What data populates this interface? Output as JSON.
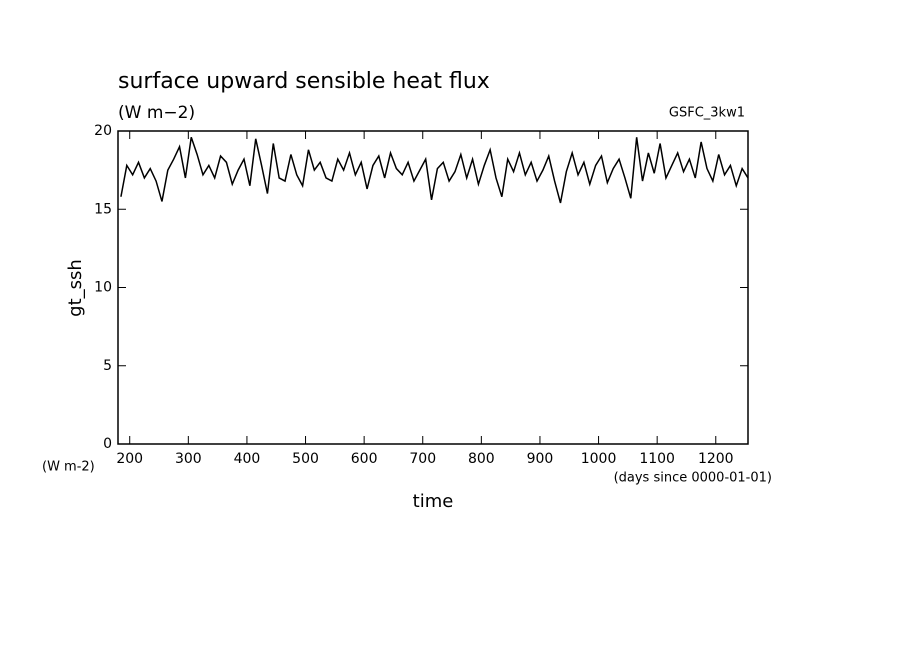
{
  "chart_data": {
    "type": "line",
    "title": "surface upward sensible heat flux",
    "subtitle": "(W m−2)",
    "annotation_right": "GSFC_3kw1",
    "y_label": "gt_ssh",
    "y_unit": "(W m-2)",
    "x_unit": "(days since 0000-01-01)",
    "x_label": "time",
    "xlim": [
      180,
      1255
    ],
    "ylim": [
      0,
      20
    ],
    "xticks": [
      200,
      300,
      400,
      500,
      600,
      700,
      800,
      900,
      1000,
      1100,
      1200
    ],
    "yticks": [
      0,
      5,
      10,
      15,
      20
    ],
    "x": [
      185,
      195,
      205,
      215,
      225,
      235,
      245,
      255,
      265,
      275,
      285,
      295,
      305,
      315,
      325,
      335,
      345,
      355,
      365,
      375,
      385,
      395,
      405,
      415,
      425,
      435,
      445,
      455,
      465,
      475,
      485,
      495,
      505,
      515,
      525,
      535,
      545,
      555,
      565,
      575,
      585,
      595,
      605,
      615,
      625,
      635,
      645,
      655,
      665,
      675,
      685,
      695,
      705,
      715,
      725,
      735,
      745,
      755,
      765,
      775,
      785,
      795,
      805,
      815,
      825,
      835,
      845,
      855,
      865,
      875,
      885,
      895,
      905,
      915,
      925,
      935,
      945,
      955,
      965,
      975,
      985,
      995,
      1005,
      1015,
      1025,
      1035,
      1045,
      1055,
      1065,
      1075,
      1085,
      1095,
      1105,
      1115,
      1125,
      1135,
      1145,
      1155,
      1165,
      1175,
      1185,
      1195,
      1205,
      1215,
      1225,
      1235,
      1245,
      1255
    ],
    "series": [
      {
        "color": "#000000",
        "values": [
          15.8,
          17.8,
          17.2,
          18.0,
          17.0,
          17.6,
          16.8,
          15.5,
          17.5,
          18.2,
          19.0,
          17.0,
          19.6,
          18.5,
          17.2,
          17.8,
          17.0,
          18.4,
          18.0,
          16.6,
          17.5,
          18.2,
          16.5,
          19.5,
          17.8,
          16.0,
          19.2,
          17.0,
          16.8,
          18.5,
          17.2,
          16.5,
          18.8,
          17.5,
          18.0,
          17.0,
          16.8,
          18.2,
          17.5,
          18.6,
          17.2,
          18.0,
          16.3,
          17.8,
          18.4,
          17.0,
          18.6,
          17.6,
          17.2,
          18.0,
          16.8,
          17.5,
          18.2,
          15.6,
          17.6,
          18.0,
          16.8,
          17.4,
          18.5,
          17.0,
          18.2,
          16.6,
          17.8,
          18.8,
          17.0,
          15.8,
          18.2,
          17.4,
          18.6,
          17.2,
          18.0,
          16.8,
          17.5,
          18.4,
          16.8,
          15.4,
          17.4,
          18.6,
          17.2,
          18.0,
          16.6,
          17.8,
          18.4,
          16.7,
          17.6,
          18.2,
          17.0,
          15.7,
          19.6,
          16.8,
          18.6,
          17.3,
          19.2,
          17.0,
          17.8,
          18.6,
          17.4,
          18.2,
          17.0,
          19.3,
          17.6,
          16.8,
          18.5,
          17.2,
          17.8,
          16.5,
          17.6,
          17.0
        ]
      }
    ]
  }
}
